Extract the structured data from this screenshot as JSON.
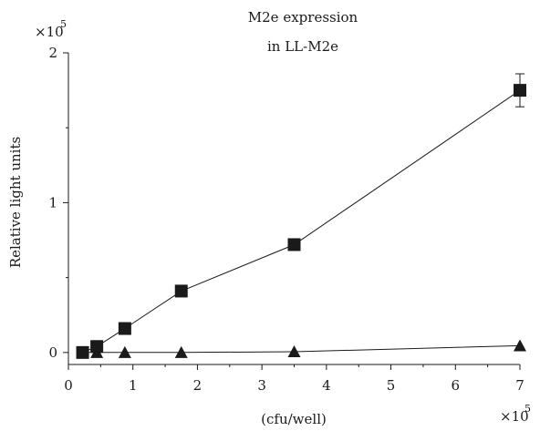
{
  "chart_data": {
    "type": "line",
    "title_lines": [
      "M2e expression",
      "in LL-M2e"
    ],
    "xlabel": "(cfu/well)",
    "ylabel": "Relative light units",
    "x_multiplier": "×10",
    "x_multiplier_exp": "5",
    "y_multiplier": "×10",
    "y_multiplier_exp": "5",
    "xlim": [
      0,
      7
    ],
    "ylim": [
      -0.08,
      2.0
    ],
    "x_ticks": [
      0,
      1,
      2,
      3,
      4,
      5,
      6,
      7
    ],
    "x_tick_labels": [
      "0",
      "1",
      "2",
      "3",
      "4",
      "5",
      "6",
      "7"
    ],
    "y_ticks": [
      0,
      1,
      2
    ],
    "y_tick_labels": [
      "0",
      "1",
      "2"
    ],
    "grid": false,
    "series": [
      {
        "marker": "square",
        "color": "#1a1a1a",
        "x": [
          0.22,
          0.44,
          0.875,
          1.75,
          3.5,
          7.0
        ],
        "y": [
          0.0,
          0.04,
          0.16,
          0.41,
          0.72,
          1.75
        ],
        "error": [
          null,
          null,
          null,
          null,
          null,
          0.11
        ]
      },
      {
        "marker": "triangle",
        "color": "#1a1a1a",
        "x": [
          0.22,
          0.44,
          0.875,
          1.75,
          3.5,
          7.0
        ],
        "y": [
          0.0,
          0.0,
          0.0,
          0.0,
          0.005,
          0.045
        ],
        "error": [
          null,
          null,
          null,
          null,
          null,
          null
        ]
      }
    ]
  }
}
